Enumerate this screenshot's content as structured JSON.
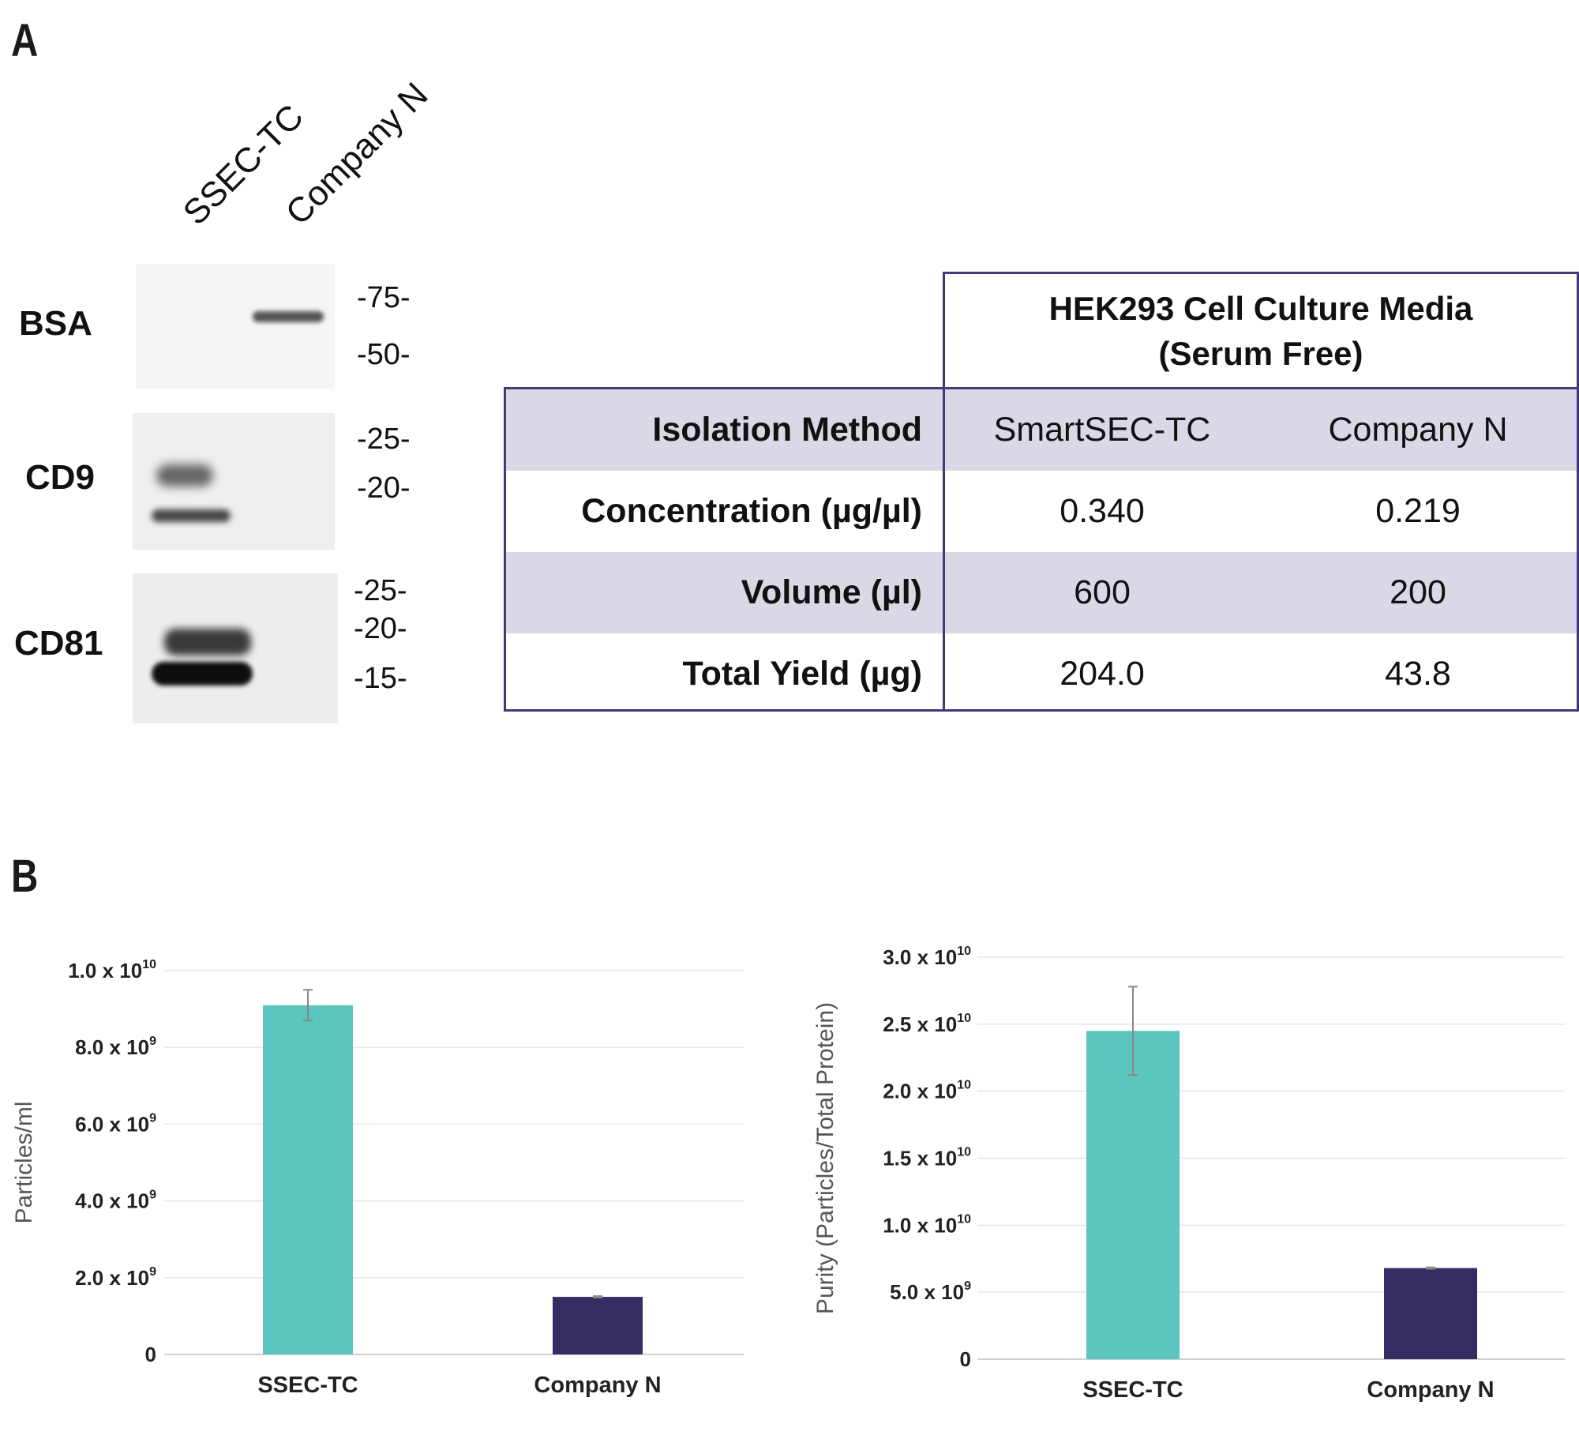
{
  "panel_a_label": "A",
  "panel_b_label": "B",
  "blot": {
    "lanes": [
      "SSEC-TC",
      "Company N"
    ],
    "rows": [
      {
        "name": "BSA",
        "markers": [
          "-75-",
          "-50-"
        ]
      },
      {
        "name": "CD9",
        "markers": [
          "-25-",
          "-20-"
        ]
      },
      {
        "name": "CD81",
        "markers": [
          "-25-",
          "-20-",
          "-15-"
        ]
      }
    ]
  },
  "table": {
    "header_line1": "HEK293 Cell Culture Media",
    "header_line2": "(Serum Free)",
    "rows": [
      {
        "label": "Isolation Method",
        "v1": "SmartSEC-TC",
        "v2": "Company N"
      },
      {
        "label": "Concentration (µg/µl)",
        "v1": "0.340",
        "v2": "0.219"
      },
      {
        "label": "Volume (µl)",
        "v1": "600",
        "v2": "200"
      },
      {
        "label": "Total Yield (µg)",
        "v1": "204.0",
        "v2": "43.8"
      }
    ]
  },
  "colors": {
    "teal": "#5bc5be",
    "navy": "#352d62",
    "grid": "#e6e6e6",
    "table_border": "#403a78"
  },
  "chart_data": [
    {
      "type": "bar",
      "title": "",
      "xlabel": "",
      "ylabel": "Particles/ml",
      "categories": [
        "SSEC-TC",
        "Company N"
      ],
      "values": [
        9100000000.0,
        1500000000.0
      ],
      "errors": [
        400000000.0,
        20000000.0
      ],
      "ylim": [
        0,
        10000000000.0
      ],
      "yticks": [
        0,
        2000000000.0,
        4000000000.0,
        6000000000.0,
        8000000000.0,
        10000000000.0
      ],
      "ytick_labels": [
        {
          "mantissa": "0",
          "exp": ""
        },
        {
          "mantissa": "2.0 x 10",
          "exp": "9"
        },
        {
          "mantissa": "4.0 x 10",
          "exp": "9"
        },
        {
          "mantissa": "6.0 x 10",
          "exp": "9"
        },
        {
          "mantissa": "8.0 x 10",
          "exp": "9"
        },
        {
          "mantissa": "1.0 x 10",
          "exp": "10"
        }
      ]
    },
    {
      "type": "bar",
      "title": "",
      "xlabel": "",
      "ylabel": "Purity (Particles/Total Protein)",
      "categories": [
        "SSEC-TC",
        "Company N"
      ],
      "values": [
        24500000000.0,
        6800000000.0
      ],
      "errors": [
        3300000000.0,
        50000000.0
      ],
      "ylim": [
        0,
        30000000000.0
      ],
      "yticks": [
        0,
        5000000000.0,
        10000000000.0,
        15000000000.0,
        20000000000.0,
        25000000000.0,
        30000000000.0
      ],
      "ytick_labels": [
        {
          "mantissa": "0",
          "exp": ""
        },
        {
          "mantissa": "5.0 x 10",
          "exp": "9"
        },
        {
          "mantissa": "1.0 x 10",
          "exp": "10"
        },
        {
          "mantissa": "1.5 x 10",
          "exp": "10"
        },
        {
          "mantissa": "2.0 x 10",
          "exp": "10"
        },
        {
          "mantissa": "2.5 x 10",
          "exp": "10"
        },
        {
          "mantissa": "3.0 x 10",
          "exp": "10"
        }
      ]
    }
  ]
}
